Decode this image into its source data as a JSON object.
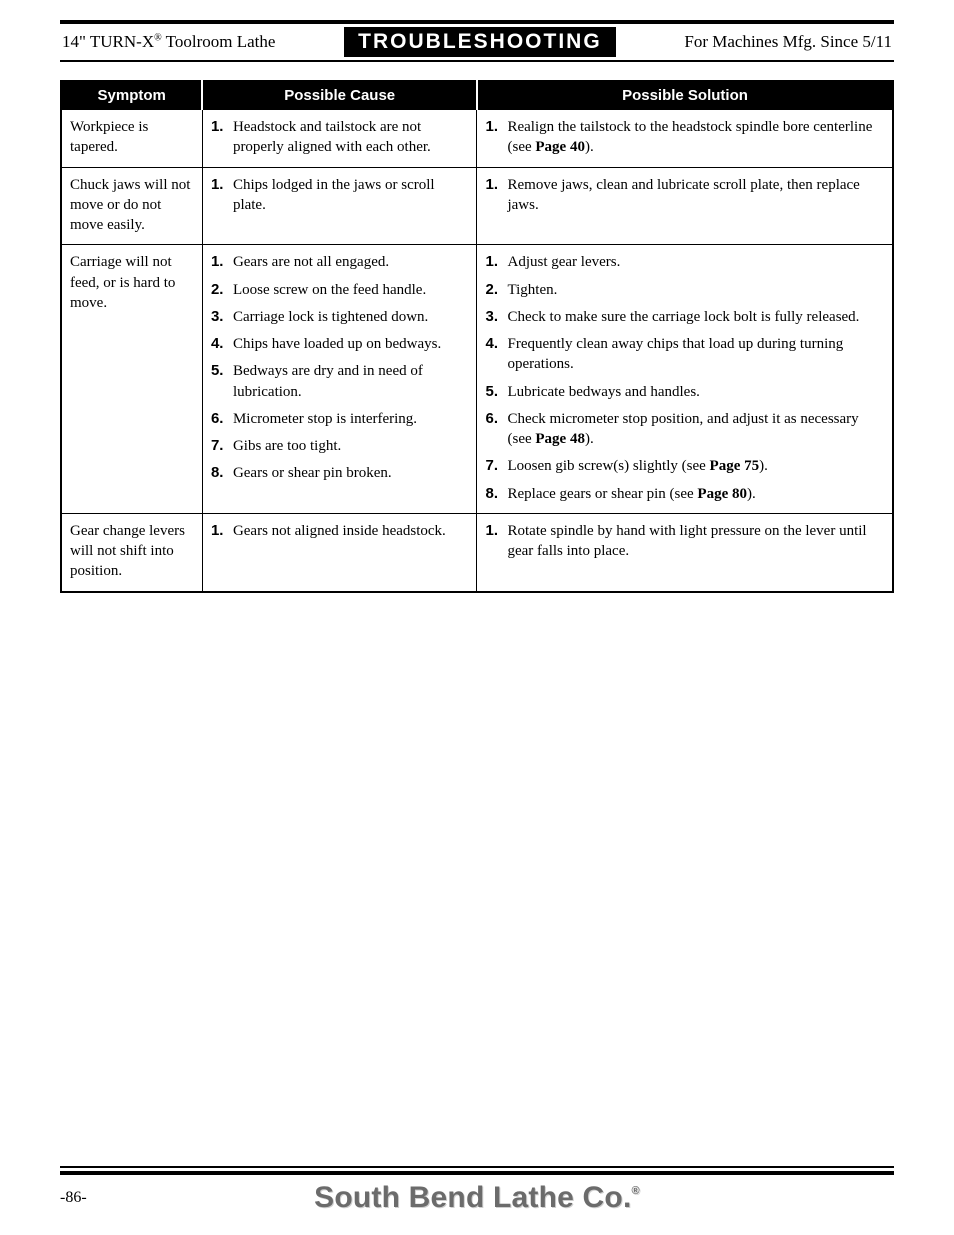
{
  "header": {
    "left_prefix": "14\" TURN-X",
    "left_reg": "®",
    "left_suffix": " Toolroom Lathe",
    "center": "TROUBLESHOOTING",
    "right": "For Machines Mfg. Since 5/11"
  },
  "table": {
    "headers": {
      "symptom": "Symptom",
      "cause": "Possible Cause",
      "solution": "Possible Solution"
    },
    "rows": [
      {
        "symptom": "Workpiece is tapered.",
        "causes": [
          {
            "n": "1.",
            "t": "Headstock and tailstock are not properly aligned with each other."
          }
        ],
        "solutions": [
          {
            "n": "1.",
            "t": "Realign the tailstock to the headstock spindle bore centerline (see ",
            "b": "Page 40",
            "a": ")."
          }
        ]
      },
      {
        "symptom": "Chuck jaws will not move or do not move easily.",
        "causes": [
          {
            "n": "1.",
            "t": "Chips lodged in the jaws or scroll plate."
          }
        ],
        "solutions": [
          {
            "n": "1.",
            "t": "Remove jaws, clean and lubricate scroll plate, then replace jaws."
          }
        ]
      },
      {
        "symptom": "Carriage will not feed, or is hard to move.",
        "causes": [
          {
            "n": "1.",
            "t": "Gears are not all engaged."
          },
          {
            "n": "2.",
            "t": "Loose screw on the feed handle."
          },
          {
            "n": "3.",
            "t": "Carriage lock is tightened down."
          },
          {
            "n": "4.",
            "t": "Chips have loaded up on bedways."
          },
          {
            "n": "5.",
            "t": "Bedways are dry and in need of lubrication."
          },
          {
            "n": "6.",
            "t": "Micrometer stop is interfering."
          },
          {
            "n": "7.",
            "t": "Gibs are too tight."
          },
          {
            "n": "8.",
            "t": "Gears or shear pin broken."
          }
        ],
        "solutions": [
          {
            "n": "1.",
            "t": "Adjust gear levers."
          },
          {
            "n": "2.",
            "t": "Tighten."
          },
          {
            "n": "3.",
            "t": "Check to make sure the carriage lock bolt is fully released."
          },
          {
            "n": "4.",
            "t": "Frequently clean away chips that load up during turning operations."
          },
          {
            "n": "5.",
            "t": "Lubricate bedways and handles."
          },
          {
            "n": "6.",
            "t": "Check micrometer stop position, and adjust it as necessary (see ",
            "b": "Page 48",
            "a": ")."
          },
          {
            "n": "7.",
            "t": "Loosen gib screw(s) slightly (see ",
            "b": "Page 75",
            "a": ")."
          },
          {
            "n": "8.",
            "t": "Replace gears or shear pin (see ",
            "b": "Page 80",
            "a": ")."
          }
        ]
      },
      {
        "symptom": "Gear change levers will not shift into position.",
        "causes": [
          {
            "n": "1.",
            "t": "Gears not aligned inside headstock."
          }
        ],
        "solutions": [
          {
            "n": "1.",
            "t": "Rotate spindle by hand with light pressure on the lever until gear falls into place."
          }
        ]
      }
    ]
  },
  "footer": {
    "page": "-86-",
    "brand": "South Bend Lathe Co.",
    "brand_reg": "®"
  }
}
